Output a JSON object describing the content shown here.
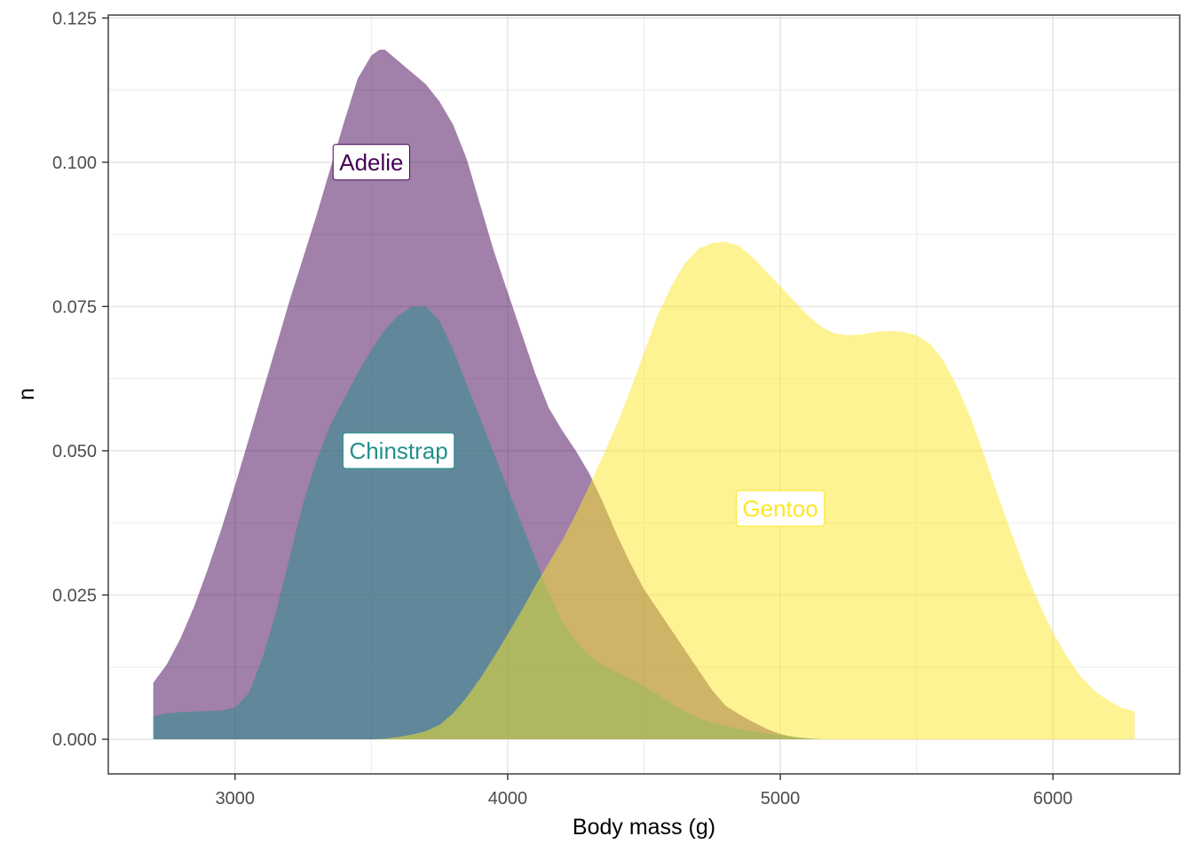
{
  "chart_data": {
    "type": "area",
    "subtype": "density",
    "xlabel": "Body mass (g)",
    "ylabel": "n",
    "xlim": [
      2535,
      6465
    ],
    "ylim": [
      -0.006,
      0.1255
    ],
    "x_ticks": [
      3000,
      4000,
      5000,
      6000
    ],
    "x_tick_labels": [
      "3000",
      "4000",
      "5000",
      "6000"
    ],
    "y_ticks": [
      0,
      0.025,
      0.05,
      0.075,
      0.1,
      0.125
    ],
    "y_tick_labels": [
      "0.000",
      "0.025",
      "0.050",
      "0.075",
      "0.100",
      "0.125"
    ],
    "grid": true,
    "legend": "none",
    "series": [
      {
        "name": "Adelie",
        "color": "#440154",
        "fill_opacity": 0.5,
        "label": {
          "x": 3500,
          "y": 0.1
        },
        "points": [
          [
            2700,
            0.0098
          ],
          [
            2750,
            0.013
          ],
          [
            2800,
            0.0175
          ],
          [
            2850,
            0.023
          ],
          [
            2900,
            0.0295
          ],
          [
            2950,
            0.0365
          ],
          [
            3000,
            0.044
          ],
          [
            3050,
            0.052
          ],
          [
            3100,
            0.06
          ],
          [
            3150,
            0.068
          ],
          [
            3200,
            0.076
          ],
          [
            3250,
            0.0835
          ],
          [
            3300,
            0.091
          ],
          [
            3350,
            0.099
          ],
          [
            3400,
            0.107
          ],
          [
            3450,
            0.1145
          ],
          [
            3500,
            0.1185
          ],
          [
            3530,
            0.1195
          ],
          [
            3550,
            0.1195
          ],
          [
            3600,
            0.1175
          ],
          [
            3650,
            0.1155
          ],
          [
            3700,
            0.1135
          ],
          [
            3750,
            0.1105
          ],
          [
            3800,
            0.1065
          ],
          [
            3850,
            0.1005
          ],
          [
            3900,
            0.0925
          ],
          [
            3950,
            0.0845
          ],
          [
            4000,
            0.0775
          ],
          [
            4050,
            0.0705
          ],
          [
            4100,
            0.0635
          ],
          [
            4150,
            0.0575
          ],
          [
            4200,
            0.0535
          ],
          [
            4250,
            0.05
          ],
          [
            4300,
            0.046
          ],
          [
            4350,
            0.041
          ],
          [
            4400,
            0.0355
          ],
          [
            4450,
            0.0305
          ],
          [
            4500,
            0.026
          ],
          [
            4550,
            0.0225
          ],
          [
            4600,
            0.019
          ],
          [
            4650,
            0.0155
          ],
          [
            4700,
            0.012
          ],
          [
            4750,
            0.0085
          ],
          [
            4800,
            0.0058
          ],
          [
            4850,
            0.0043
          ],
          [
            4900,
            0.003
          ],
          [
            4950,
            0.0018
          ],
          [
            5000,
            0.0009
          ],
          [
            5050,
            0.0004
          ],
          [
            5100,
            0.0001
          ],
          [
            5150,
            0.0
          ],
          [
            5180,
            0.0
          ]
        ]
      },
      {
        "name": "Chinstrap",
        "color": "#21908C",
        "fill_opacity": 0.5,
        "label": {
          "x": 3600,
          "y": 0.05
        },
        "points": [
          [
            2700,
            0.004
          ],
          [
            2750,
            0.0045
          ],
          [
            2800,
            0.0047
          ],
          [
            2850,
            0.0048
          ],
          [
            2900,
            0.0049
          ],
          [
            2950,
            0.005
          ],
          [
            3000,
            0.0055
          ],
          [
            3050,
            0.008
          ],
          [
            3100,
            0.014
          ],
          [
            3150,
            0.022
          ],
          [
            3200,
            0.0315
          ],
          [
            3250,
            0.041
          ],
          [
            3300,
            0.0485
          ],
          [
            3350,
            0.0545
          ],
          [
            3400,
            0.059
          ],
          [
            3450,
            0.0635
          ],
          [
            3500,
            0.0675
          ],
          [
            3550,
            0.071
          ],
          [
            3600,
            0.0735
          ],
          [
            3650,
            0.075
          ],
          [
            3700,
            0.075
          ],
          [
            3750,
            0.0725
          ],
          [
            3800,
            0.0675
          ],
          [
            3850,
            0.0615
          ],
          [
            3900,
            0.0555
          ],
          [
            3950,
            0.0495
          ],
          [
            4000,
            0.0435
          ],
          [
            4050,
            0.0375
          ],
          [
            4100,
            0.0315
          ],
          [
            4150,
            0.0255
          ],
          [
            4200,
            0.0205
          ],
          [
            4250,
            0.017
          ],
          [
            4300,
            0.0145
          ],
          [
            4350,
            0.0128
          ],
          [
            4400,
            0.0117
          ],
          [
            4450,
            0.0105
          ],
          [
            4500,
            0.0092
          ],
          [
            4550,
            0.0078
          ],
          [
            4600,
            0.0062
          ],
          [
            4650,
            0.0048
          ],
          [
            4700,
            0.0037
          ],
          [
            4750,
            0.0029
          ],
          [
            4800,
            0.0023
          ],
          [
            4850,
            0.0018
          ],
          [
            4900,
            0.0014
          ],
          [
            4950,
            0.001
          ],
          [
            5000,
            0.0007
          ],
          [
            5050,
            0.0004
          ],
          [
            5100,
            0.0002
          ],
          [
            5150,
            0.0
          ],
          [
            5180,
            0.0
          ]
        ]
      },
      {
        "name": "Gentoo",
        "color": "#FDE725",
        "fill_opacity": 0.5,
        "label": {
          "x": 5000,
          "y": 0.04
        },
        "points": [
          [
            3500,
            0.0
          ],
          [
            3550,
            0.0001
          ],
          [
            3600,
            0.0004
          ],
          [
            3650,
            0.0008
          ],
          [
            3700,
            0.0014
          ],
          [
            3750,
            0.0025
          ],
          [
            3800,
            0.0045
          ],
          [
            3850,
            0.0073
          ],
          [
            3900,
            0.0106
          ],
          [
            3950,
            0.0143
          ],
          [
            4000,
            0.0182
          ],
          [
            4050,
            0.0222
          ],
          [
            4100,
            0.0265
          ],
          [
            4150,
            0.0305
          ],
          [
            4200,
            0.0345
          ],
          [
            4250,
            0.039
          ],
          [
            4300,
            0.044
          ],
          [
            4350,
            0.0492
          ],
          [
            4400,
            0.0545
          ],
          [
            4450,
            0.0605
          ],
          [
            4500,
            0.067
          ],
          [
            4550,
            0.0735
          ],
          [
            4600,
            0.0785
          ],
          [
            4650,
            0.0825
          ],
          [
            4700,
            0.085
          ],
          [
            4750,
            0.086
          ],
          [
            4800,
            0.0862
          ],
          [
            4850,
            0.0855
          ],
          [
            4900,
            0.0835
          ],
          [
            4950,
            0.081
          ],
          [
            5000,
            0.0785
          ],
          [
            5050,
            0.076
          ],
          [
            5100,
            0.0735
          ],
          [
            5150,
            0.0715
          ],
          [
            5200,
            0.0703
          ],
          [
            5250,
            0.07
          ],
          [
            5300,
            0.0702
          ],
          [
            5350,
            0.0706
          ],
          [
            5400,
            0.0708
          ],
          [
            5450,
            0.0706
          ],
          [
            5500,
            0.07
          ],
          [
            5550,
            0.0685
          ],
          [
            5600,
            0.0655
          ],
          [
            5650,
            0.061
          ],
          [
            5700,
            0.0555
          ],
          [
            5750,
            0.049
          ],
          [
            5800,
            0.042
          ],
          [
            5850,
            0.0355
          ],
          [
            5900,
            0.029
          ],
          [
            5950,
            0.0235
          ],
          [
            6000,
            0.0185
          ],
          [
            6050,
            0.0145
          ],
          [
            6100,
            0.011
          ],
          [
            6150,
            0.0085
          ],
          [
            6200,
            0.0068
          ],
          [
            6250,
            0.0055
          ],
          [
            6300,
            0.0048
          ]
        ]
      }
    ]
  }
}
